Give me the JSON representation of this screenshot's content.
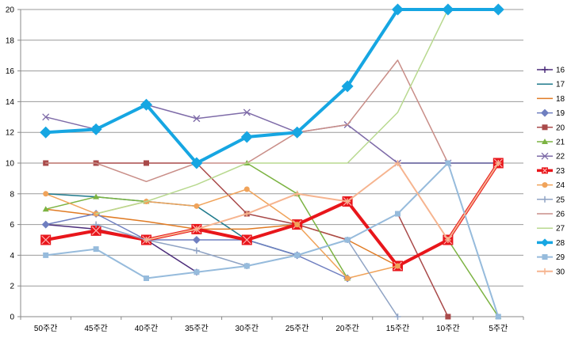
{
  "chart_data": {
    "type": "line",
    "title": "",
    "xlabel": "",
    "ylabel": "",
    "categories": [
      "50주간",
      "45주간",
      "40주간",
      "35주간",
      "30주간",
      "25주간",
      "20주간",
      "15주간",
      "10주간",
      "5주간"
    ],
    "ylim": [
      0,
      20
    ],
    "yticks": [
      0,
      2,
      4,
      6,
      8,
      10,
      12,
      14,
      16,
      18,
      20
    ],
    "grid": "horizontal",
    "legend_position": "right",
    "series": [
      {
        "name": "16",
        "color": "#4B2C7A",
        "marker": "plus",
        "width": 1.5,
        "values": [
          6,
          5.7,
          5,
          2.9,
          null,
          null,
          null,
          null,
          null,
          null
        ]
      },
      {
        "name": "17",
        "color": "#1F7A8C",
        "marker": "none",
        "width": 1.5,
        "values": [
          8,
          7.8,
          7.5,
          7.2,
          5,
          4,
          null,
          10,
          10,
          10
        ]
      },
      {
        "name": "18",
        "color": "#E07B24",
        "marker": "none",
        "width": 1.5,
        "values": [
          7,
          6.6,
          6.2,
          5.7,
          5.7,
          6,
          5,
          3.3,
          null,
          null
        ]
      },
      {
        "name": "19",
        "color": "#6F7FC0",
        "marker": "diamond",
        "width": 1.5,
        "values": [
          6,
          6.7,
          5,
          5,
          5,
          4,
          2.5,
          null,
          null,
          null
        ]
      },
      {
        "name": "20",
        "color": "#A94A4A",
        "marker": "square",
        "width": 1.5,
        "values": [
          10,
          10,
          10,
          10,
          6.7,
          6,
          5,
          6.7,
          0,
          null
        ]
      },
      {
        "name": "21",
        "color": "#7CB342",
        "marker": "triangle",
        "width": 1.5,
        "values": [
          7,
          7.8,
          7.5,
          null,
          10,
          8,
          2.5,
          null,
          5,
          0
        ]
      },
      {
        "name": "22",
        "color": "#7E6BA8",
        "marker": "x",
        "width": 1.5,
        "values": [
          13,
          12.2,
          13.8,
          12.9,
          13.3,
          12,
          12.5,
          10,
          10,
          10
        ]
      },
      {
        "name": "23",
        "color": "#E8161B",
        "marker": "boxx",
        "width": 4,
        "values": [
          5,
          5.6,
          5,
          5.7,
          5,
          6,
          7.5,
          3.3,
          5,
          10
        ]
      },
      {
        "name": "24",
        "color": "#F0A35A",
        "marker": "circle",
        "width": 1.5,
        "values": [
          8,
          6.7,
          7.5,
          7.2,
          8.3,
          6,
          2.5,
          3.3,
          null,
          null
        ]
      },
      {
        "name": "25",
        "color": "#8FA3C4",
        "marker": "plus",
        "width": 1.5,
        "values": [
          null,
          6,
          5,
          4.3,
          3.3,
          4,
          5,
          0,
          null,
          null
        ]
      },
      {
        "name": "26",
        "color": "#C98E88",
        "marker": "none",
        "width": 1.5,
        "values": [
          10,
          10,
          8.8,
          10,
          10,
          12,
          12.5,
          16.7,
          10,
          null
        ]
      },
      {
        "name": "27",
        "color": "#B8D98F",
        "marker": "none",
        "width": 1.5,
        "values": [
          null,
          6.7,
          7.5,
          8.6,
          10,
          10,
          10,
          13.3,
          20,
          null
        ]
      },
      {
        "name": "28",
        "color": "#16A6E2",
        "marker": "diamond",
        "width": 4,
        "values": [
          12,
          12.2,
          13.8,
          10,
          11.7,
          12,
          15,
          20,
          20,
          20
        ]
      },
      {
        "name": "29",
        "color": "#96BBDC",
        "marker": "square",
        "width": 2,
        "values": [
          4,
          4.4,
          2.5,
          2.9,
          3.3,
          4,
          5,
          6.7,
          10,
          0
        ]
      },
      {
        "name": "30",
        "color": "#F6B48F",
        "marker": "plus",
        "width": 2,
        "values": [
          null,
          null,
          5,
          5.7,
          6.7,
          8,
          7.5,
          10,
          5,
          10
        ]
      }
    ]
  }
}
